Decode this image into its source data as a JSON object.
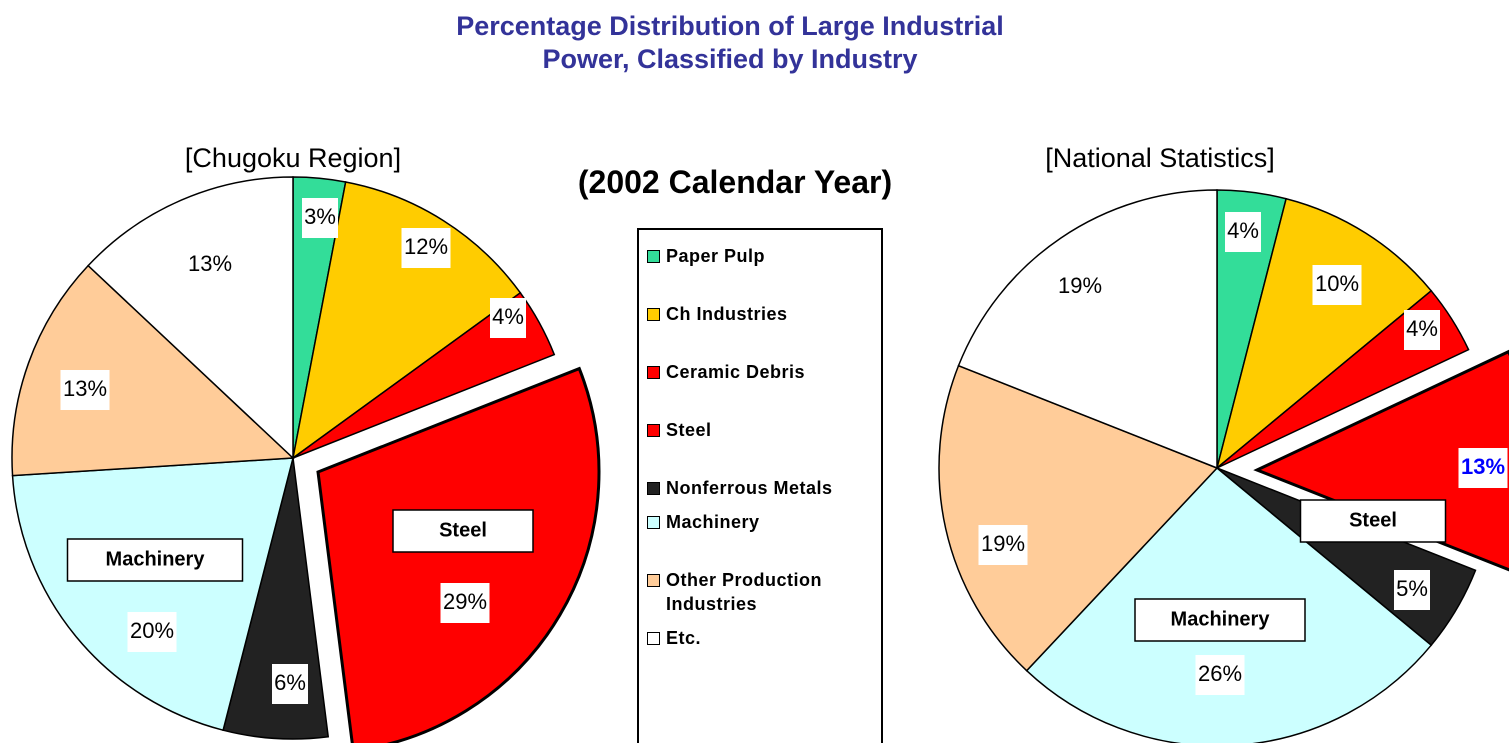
{
  "title": "Percentage Distribution of Large Industrial Power, Classified by Industry",
  "subtitle": "(2002 Calendar Year)",
  "chart_data": [
    {
      "type": "pie",
      "title": "[Chugoku Region]",
      "categories": [
        "Paper Pulp",
        "Ch Industries",
        "Ceramic Debris",
        "Steel",
        "Nonferrous Metals",
        "Machinery",
        "Other Production Industries",
        "Etc."
      ],
      "values": [
        3,
        12,
        4,
        29,
        6,
        20,
        13,
        13
      ],
      "value_labels": [
        "3%",
        "12%",
        "4%",
        "29%",
        "6%",
        "20%",
        "13%",
        "13%"
      ],
      "colors": [
        "#33dd99",
        "#ffcc00",
        "#ff0000",
        "#ff0000",
        "#222222",
        "#ccffff",
        "#ffcc99",
        "#ffffff"
      ],
      "annotations": [
        {
          "text": "Steel"
        },
        {
          "text": "Machinery"
        }
      ]
    },
    {
      "type": "pie",
      "title": "[National Statistics]",
      "values": [
        4,
        10,
        4,
        13,
        5,
        26,
        19,
        19
      ],
      "value_labels": [
        "4%",
        "10%",
        "4%",
        "13%",
        "5%",
        "26%",
        "19%",
        "19%"
      ],
      "value_label_colors": [
        "#000000",
        "#000000",
        "#000000",
        "#0000ff",
        "#000000",
        "#000000",
        "#000000",
        "#000000"
      ],
      "colors": [
        "#33dd99",
        "#ffcc00",
        "#ff0000",
        "#ff0000",
        "#222222",
        "#ccffff",
        "#ffcc99",
        "#ffffff"
      ],
      "annotations": [
        {
          "text": "Steel"
        },
        {
          "text": "Machinery"
        }
      ]
    }
  ]
}
